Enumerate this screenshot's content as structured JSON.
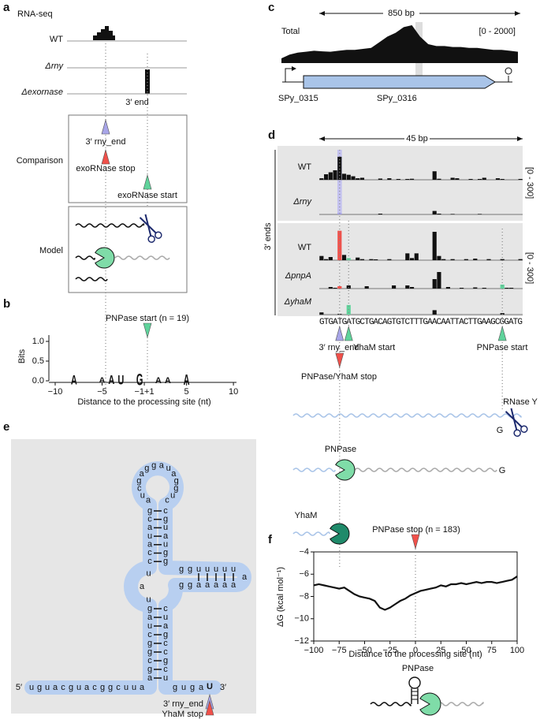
{
  "a": {
    "label": "a",
    "title": "RNA-seq",
    "tracks": [
      "WT",
      "Δrny",
      "Δexornase"
    ],
    "end_label": "3′ end",
    "comparison": "Comparison",
    "rny_end": "3′ rny_end",
    "exo_stop": "exoRNase stop",
    "exo_start": "exoRNase start",
    "model": "Model"
  },
  "b": {
    "label": "b",
    "annotation": "PNPase start (n = 19)",
    "ylabel": "Bits",
    "xlabel": "Distance to the processing site (nt)",
    "xlim": [
      -10,
      10
    ],
    "ylim": [
      0,
      1
    ],
    "xticks": [
      {
        "value": -10,
        "label": "−10"
      },
      {
        "value": -5,
        "label": "−5"
      },
      {
        "value": 0,
        "label": "−1+1"
      },
      {
        "value": 5,
        "label": "5"
      },
      {
        "value": 10,
        "label": "10"
      }
    ],
    "yticks": [
      {
        "value": 0,
        "label": "0.0"
      },
      {
        "value": 0.5,
        "label": "0.5"
      },
      {
        "value": 1,
        "label": "1.0"
      }
    ],
    "logo": [
      {
        "position": -8,
        "letter": "A",
        "bits": 0.3,
        "color": "#9a9a9a"
      },
      {
        "position": -5,
        "letter": "A",
        "bits": 0.18,
        "color": "#9a9a9a"
      },
      {
        "position": -4,
        "letter": "A",
        "bits": 0.28,
        "color": "#9a9a9a"
      },
      {
        "position": -3,
        "letter": "U",
        "bits": 0.3,
        "color": "#9a9a9a"
      },
      {
        "position": -1,
        "letter": "G",
        "bits": 0.38,
        "color": "#1d2a6e"
      },
      {
        "position": 2,
        "letter": "A",
        "bits": 0.2,
        "color": "#9a9a9a"
      },
      {
        "position": 3,
        "letter": "A",
        "bits": 0.2,
        "color": "#9a9a9a"
      },
      {
        "position": 5,
        "letter": "A",
        "bits": 0.34,
        "color": "#9a9a9a"
      }
    ]
  },
  "c": {
    "label": "c",
    "scale_label": "850 bp",
    "track": "Total",
    "range_label": "[0 - 2000]",
    "ylim": [
      0,
      2000
    ],
    "values": [
      250,
      450,
      550,
      600,
      650,
      620,
      600,
      650,
      700,
      700,
      750,
      800,
      1100,
      1400,
      1600,
      1900,
      2000,
      1400,
      1000,
      900,
      900,
      850,
      850,
      800,
      800,
      750,
      700,
      700,
      650,
      600
    ],
    "genes": [
      "SPy_0315",
      "SPy_0316"
    ]
  },
  "d": {
    "label": "d",
    "scale_label": "45 bp",
    "group_label": "3′ ends",
    "range_labels": [
      "[0 - 300]",
      "[0 - 300]"
    ],
    "ylim": [
      0,
      300
    ],
    "tracks": [
      {
        "name": "WT",
        "values": [
          15,
          55,
          75,
          95,
          230,
          60,
          50,
          35,
          15,
          20,
          0,
          0,
          0,
          12,
          0,
          15,
          0,
          8,
          0,
          8,
          10,
          0,
          0,
          0,
          0,
          85,
          10,
          0,
          0,
          20,
          15,
          0,
          0,
          8,
          0,
          8,
          20,
          0,
          0,
          15,
          8,
          0,
          0,
          0,
          8
        ],
        "accents": []
      },
      {
        "name": "Δrny",
        "values": [
          0,
          0,
          0,
          0,
          15,
          0,
          0,
          0,
          0,
          0,
          0,
          0,
          0,
          8,
          0,
          0,
          0,
          0,
          0,
          0,
          0,
          0,
          0,
          0,
          0,
          35,
          8,
          0,
          0,
          5,
          0,
          0,
          0,
          0,
          0,
          5,
          0,
          0,
          0,
          0,
          0,
          0,
          0,
          0,
          0
        ],
        "accents": [
          {
            "index": 4,
            "color": "#a8a5e8"
          }
        ]
      },
      {
        "name": "WT",
        "values": [
          40,
          10,
          30,
          0,
          280,
          50,
          20,
          0,
          25,
          10,
          0,
          10,
          8,
          0,
          0,
          10,
          0,
          0,
          0,
          65,
          20,
          65,
          0,
          0,
          0,
          270,
          40,
          10,
          0,
          10,
          0,
          0,
          10,
          0,
          15,
          0,
          0,
          10,
          0,
          0,
          10,
          0,
          0,
          0,
          10
        ],
        "accents": [
          {
            "index": 4,
            "color": "#f0504a"
          },
          {
            "index": 6,
            "color": "#5fd39b"
          }
        ]
      },
      {
        "name": "ΔpnpA",
        "values": [
          0,
          0,
          20,
          10,
          30,
          0,
          40,
          0,
          0,
          0,
          30,
          0,
          0,
          0,
          0,
          0,
          40,
          0,
          0,
          40,
          20,
          0,
          0,
          0,
          0,
          120,
          210,
          0,
          20,
          0,
          0,
          10,
          0,
          0,
          15,
          0,
          10,
          0,
          0,
          0,
          50,
          10,
          10,
          0,
          0
        ],
        "accents": [
          {
            "index": 4,
            "color": "#f0504a"
          },
          {
            "index": 40,
            "color": "#5fd39b"
          }
        ]
      },
      {
        "name": "ΔyhaM",
        "values": [
          30,
          0,
          0,
          0,
          10,
          0,
          130,
          0,
          0,
          0,
          0,
          0,
          0,
          0,
          0,
          0,
          0,
          0,
          0,
          0,
          0,
          0,
          0,
          0,
          0,
          60,
          0,
          0,
          0,
          0,
          0,
          0,
          0,
          0,
          0,
          0,
          0,
          0,
          0,
          0,
          20,
          0,
          0,
          0,
          0
        ],
        "accents": [
          {
            "index": 6,
            "color": "#5fd39b"
          }
        ]
      }
    ],
    "sequence": "GTGATGATGCTGACAGTGTCTTTGAACAATTACTTGAAGCGGATG",
    "rny_end": "3′ rny_end",
    "yham_start": "YhaM start",
    "pnpase_start": "PNPase start",
    "stop": "PNPase/YhaM stop",
    "rnase_y": "RNase Y",
    "g_cleaved": "G",
    "pnpase": "PNPase",
    "g_product": "G",
    "yham": "YhaM"
  },
  "e": {
    "label": "e",
    "five_prime": "5′",
    "three_prime": "3′",
    "tail": "uguacguacggcuua",
    "lower_left": "agcggcuag",
    "loop_left": "uau",
    "upper_left": "ccauacg",
    "top_loop": "aucgaggauagguc",
    "upper_right": "cguaugg",
    "branch_top": "gguuuuu",
    "branch_end": "a",
    "branch_bottom": "aaaaagg",
    "lower_right": "cuagccgcu",
    "tail3": "guga",
    "end_base": "U",
    "rny_end": "3′ rny_end",
    "yham_stop": "YhaM stop"
  },
  "f": {
    "type": "line",
    "label": "f",
    "annotation": "PNPase stop (n = 183)",
    "ylabel": "ΔG (kcal mol⁻¹)",
    "xlabel": "Distance to the processing site (nt)",
    "illustration_label": "PNPase",
    "color": "#111111",
    "xlim": [
      -100,
      100
    ],
    "ylim": [
      -12,
      -4
    ],
    "xticks": [
      {
        "value": -100,
        "label": "−100"
      },
      {
        "value": -75,
        "label": "−75"
      },
      {
        "value": -50,
        "label": "−50"
      },
      {
        "value": -25,
        "label": "−25"
      },
      0,
      25,
      50,
      75,
      100
    ],
    "yticks": [
      {
        "value": -12,
        "label": "−12"
      },
      {
        "value": -10,
        "label": "−10"
      },
      {
        "value": -8,
        "label": "−8"
      },
      {
        "value": -6,
        "label": "−6"
      },
      {
        "value": -4,
        "label": "−4"
      }
    ],
    "x": [
      -100,
      -95,
      -90,
      -85,
      -80,
      -75,
      -70,
      -65,
      -60,
      -55,
      -50,
      -45,
      -40,
      -35,
      -30,
      -25,
      -20,
      -15,
      -10,
      -5,
      0,
      5,
      10,
      15,
      20,
      25,
      30,
      35,
      40,
      45,
      50,
      55,
      60,
      65,
      70,
      75,
      80,
      85,
      90,
      95,
      100
    ],
    "values": [
      -7.0,
      -6.9,
      -7.0,
      -7.1,
      -7.2,
      -7.3,
      -7.2,
      -7.5,
      -7.8,
      -8.0,
      -8.1,
      -8.2,
      -8.4,
      -9.0,
      -9.2,
      -9.0,
      -8.7,
      -8.4,
      -8.2,
      -7.9,
      -7.7,
      -7.5,
      -7.4,
      -7.3,
      -7.2,
      -7.0,
      -7.1,
      -6.9,
      -6.9,
      -6.8,
      -6.9,
      -6.8,
      -6.7,
      -6.8,
      -6.7,
      -6.7,
      -6.8,
      -6.7,
      -6.6,
      -6.5,
      -6.2
    ]
  }
}
